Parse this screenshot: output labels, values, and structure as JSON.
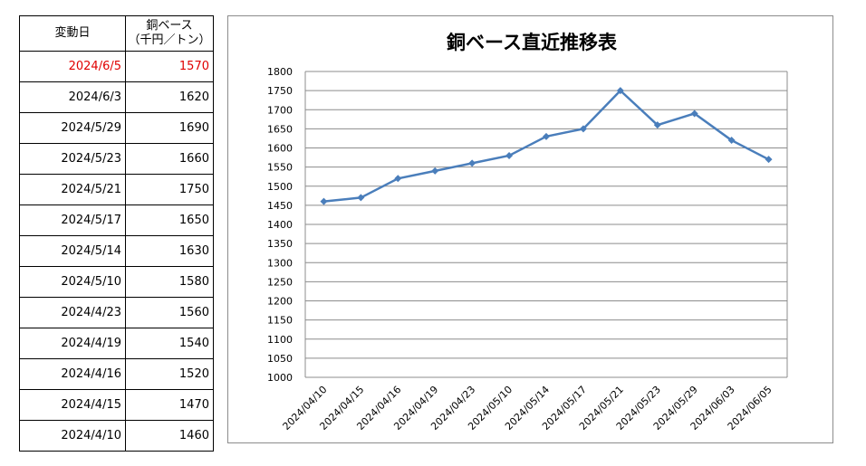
{
  "table": {
    "header_date": "変動日",
    "header_price_line1": "銅ベース",
    "header_price_line2": "（千円／トン）",
    "rows": [
      {
        "date": "2024/6/5",
        "price": "1570",
        "latest": true
      },
      {
        "date": "2024/6/3",
        "price": "1620"
      },
      {
        "date": "2024/5/29",
        "price": "1690"
      },
      {
        "date": "2024/5/23",
        "price": "1660"
      },
      {
        "date": "2024/5/21",
        "price": "1750"
      },
      {
        "date": "2024/5/17",
        "price": "1650"
      },
      {
        "date": "2024/5/14",
        "price": "1630"
      },
      {
        "date": "2024/5/10",
        "price": "1580"
      },
      {
        "date": "2024/4/23",
        "price": "1560"
      },
      {
        "date": "2024/4/19",
        "price": "1540"
      },
      {
        "date": "2024/4/16",
        "price": "1520"
      },
      {
        "date": "2024/4/15",
        "price": "1470"
      },
      {
        "date": "2024/4/10",
        "price": "1460"
      }
    ],
    "latest_color": "#e00000"
  },
  "chart_data": {
    "type": "line",
    "title": "銅ベース直近推移表",
    "xlabel": "",
    "ylabel": "",
    "categories": [
      "2024/04/10",
      "2024/04/15",
      "2024/04/16",
      "2024/04/19",
      "2024/04/23",
      "2024/05/10",
      "2024/05/14",
      "2024/05/17",
      "2024/05/21",
      "2024/05/23",
      "2024/05/29",
      "2024/06/03",
      "2024/06/05"
    ],
    "series": [
      {
        "values": [
          1460,
          1470,
          1520,
          1540,
          1560,
          1580,
          1630,
          1650,
          1750,
          1660,
          1690,
          1620,
          1570
        ],
        "color": "#4a7ebb",
        "marker": "diamond"
      }
    ],
    "ylim": [
      1000,
      1800
    ],
    "ytick_step": 50,
    "grid": true,
    "legend": "none"
  }
}
